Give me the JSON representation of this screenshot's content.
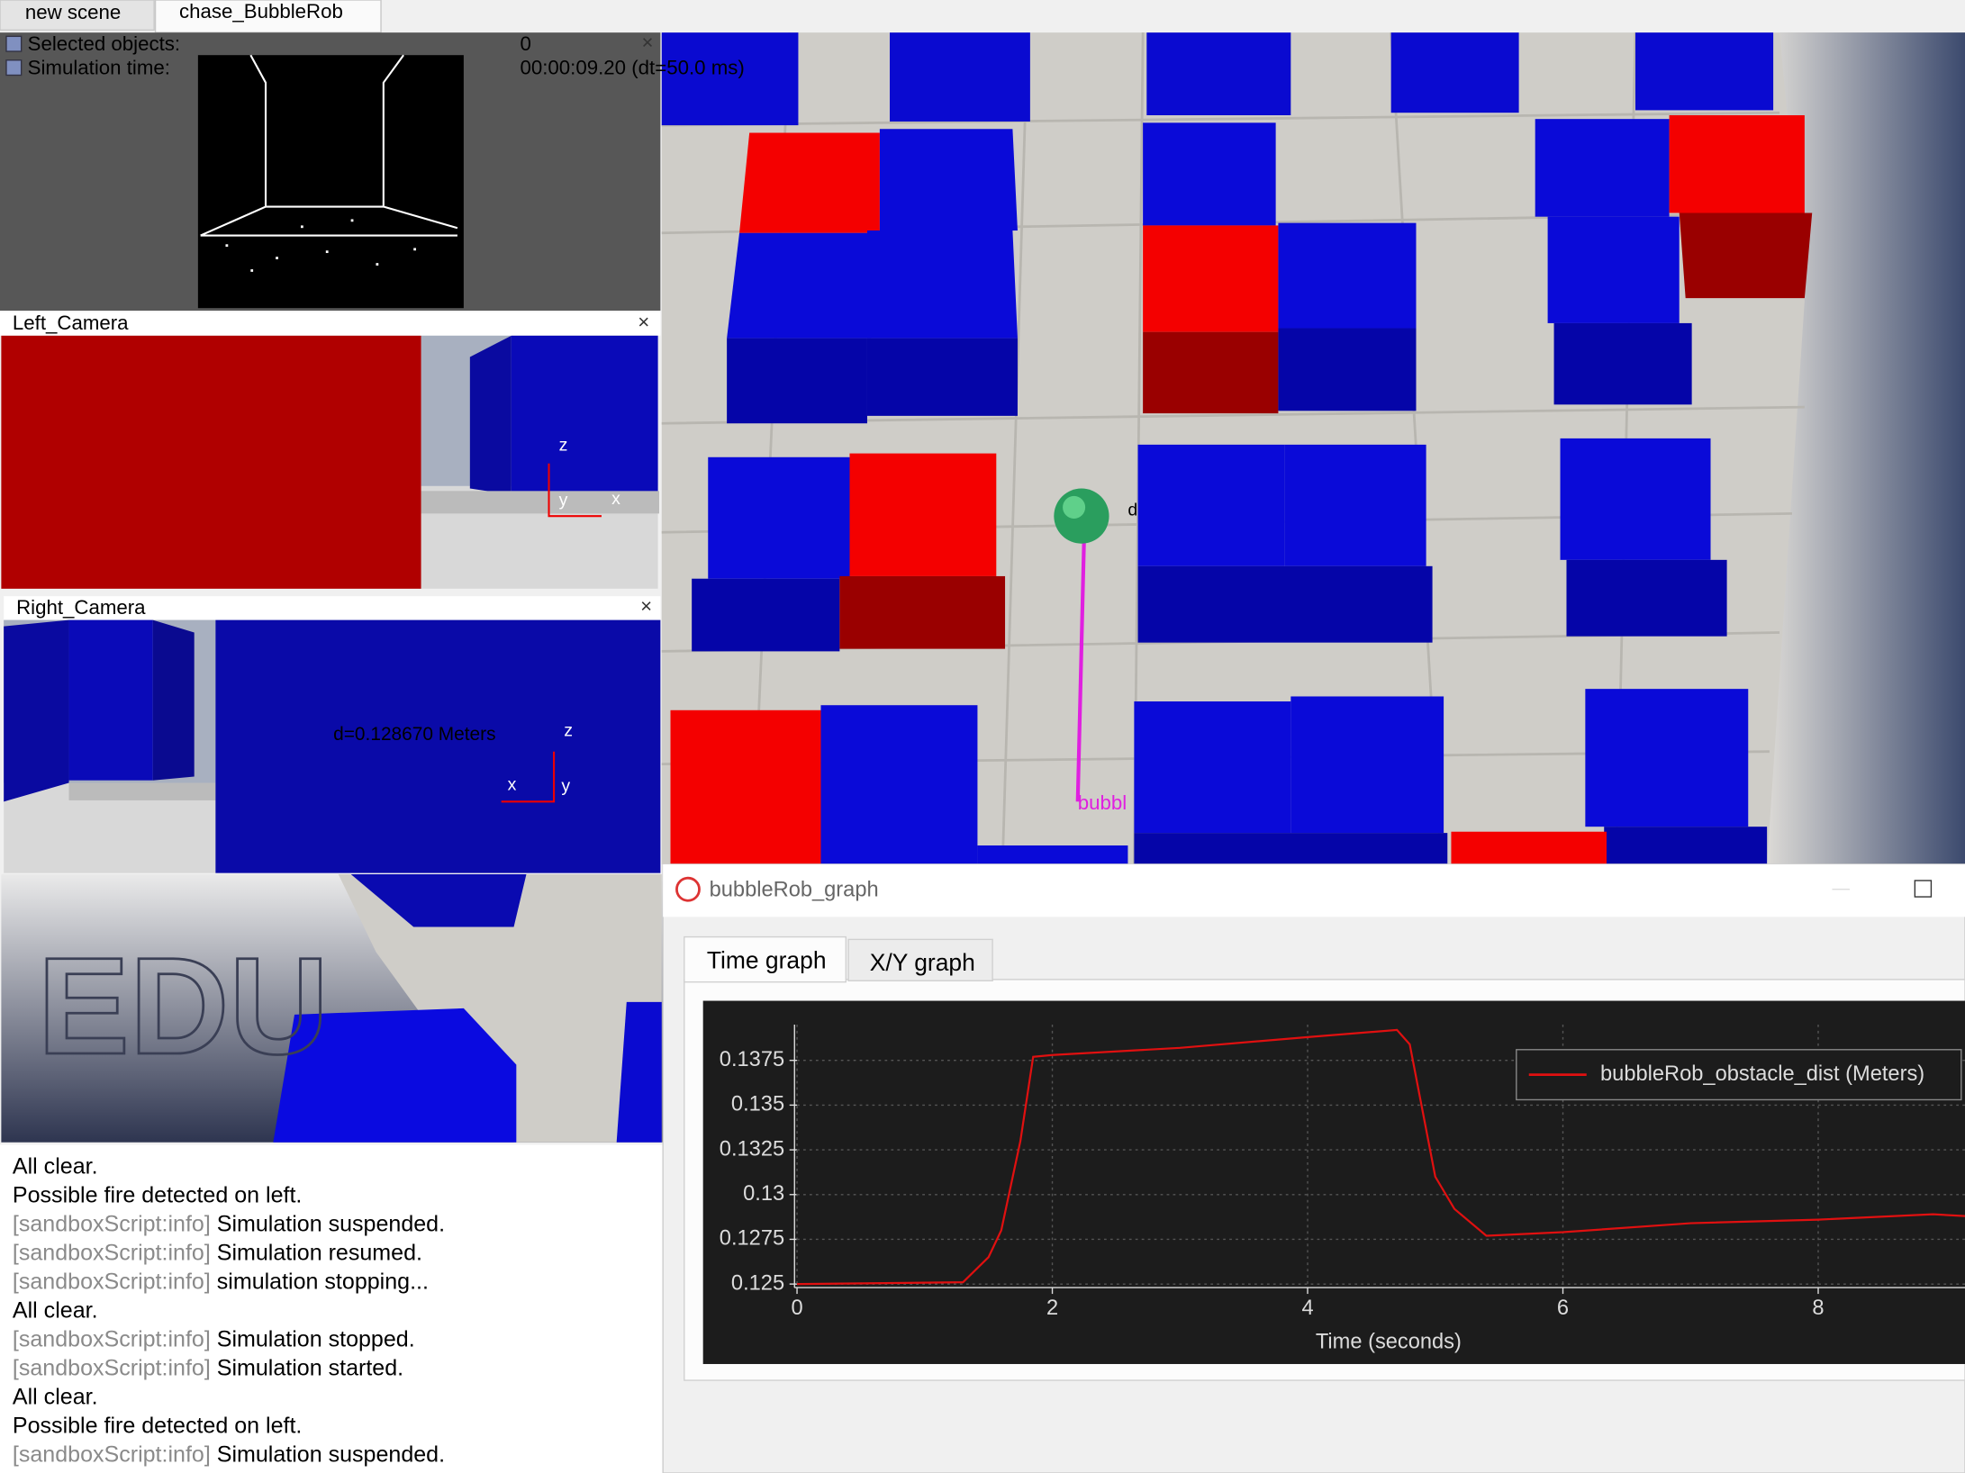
{
  "tabs": [
    "new scene",
    "chase_BubbleRob"
  ],
  "overlay": {
    "rows": [
      {
        "label": "Selected objects:",
        "value": "0"
      },
      {
        "label": "Simulation time:",
        "value": "00:00:09.20 (dt=50.0 ms)"
      }
    ]
  },
  "views": {
    "left_camera": {
      "title": "Left_Camera",
      "axes": [
        "z",
        "y",
        "x"
      ]
    },
    "right_camera": {
      "title": "Right_Camera",
      "readout": "d=0.128670 Meters",
      "axes": [
        "z",
        "x",
        "y"
      ]
    },
    "watermark": "EDU"
  },
  "scene": {
    "robot_label": "bubbl",
    "sensor_label": "d"
  },
  "console": [
    {
      "prefix": null,
      "text": "All clear."
    },
    {
      "prefix": null,
      "text": "Possible fire detected on left."
    },
    {
      "prefix": "[sandboxScript:info]",
      "text": "Simulation suspended."
    },
    {
      "prefix": "[sandboxScript:info]",
      "text": "Simulation resumed."
    },
    {
      "prefix": "[sandboxScript:info]",
      "text": "simulation stopping..."
    },
    {
      "prefix": null,
      "text": "All clear."
    },
    {
      "prefix": "[sandboxScript:info]",
      "text": "Simulation stopped."
    },
    {
      "prefix": "[sandboxScript:info]",
      "text": "Simulation started."
    },
    {
      "prefix": null,
      "text": "All clear."
    },
    {
      "prefix": null,
      "text": "Possible fire detected on left."
    },
    {
      "prefix": "[sandboxScript:info]",
      "text": "Simulation suspended."
    }
  ],
  "graph_window": {
    "title": "bubbleRob_graph",
    "tabs": [
      "Time graph",
      "X/Y graph"
    ],
    "chart": {
      "type": "line",
      "xlabel": "Time (seconds)",
      "xlim": [
        0,
        9.15
      ],
      "xticks": [
        0,
        2,
        4,
        6,
        8
      ],
      "ylim": [
        0.1248,
        0.1395
      ],
      "yticks": [
        0.125,
        0.1275,
        0.13,
        0.1325,
        0.135,
        0.1375
      ],
      "grid": true,
      "series": [
        {
          "name": "bubbleRob_obstacle_dist (Meters)",
          "color": "#e01010",
          "x": [
            0,
            1.3,
            1.5,
            1.6,
            1.75,
            1.85,
            2,
            3,
            4,
            4.7,
            4.8,
            5,
            5.15,
            5.4,
            6,
            7,
            8,
            8.9,
            9.15
          ],
          "values": [
            0.125,
            0.1251,
            0.1265,
            0.128,
            0.133,
            0.1377,
            0.1378,
            0.1382,
            0.1388,
            0.1392,
            0.1384,
            0.131,
            0.1292,
            0.1277,
            0.1279,
            0.1284,
            0.1286,
            0.1289,
            0.1288
          ]
        }
      ]
    }
  }
}
